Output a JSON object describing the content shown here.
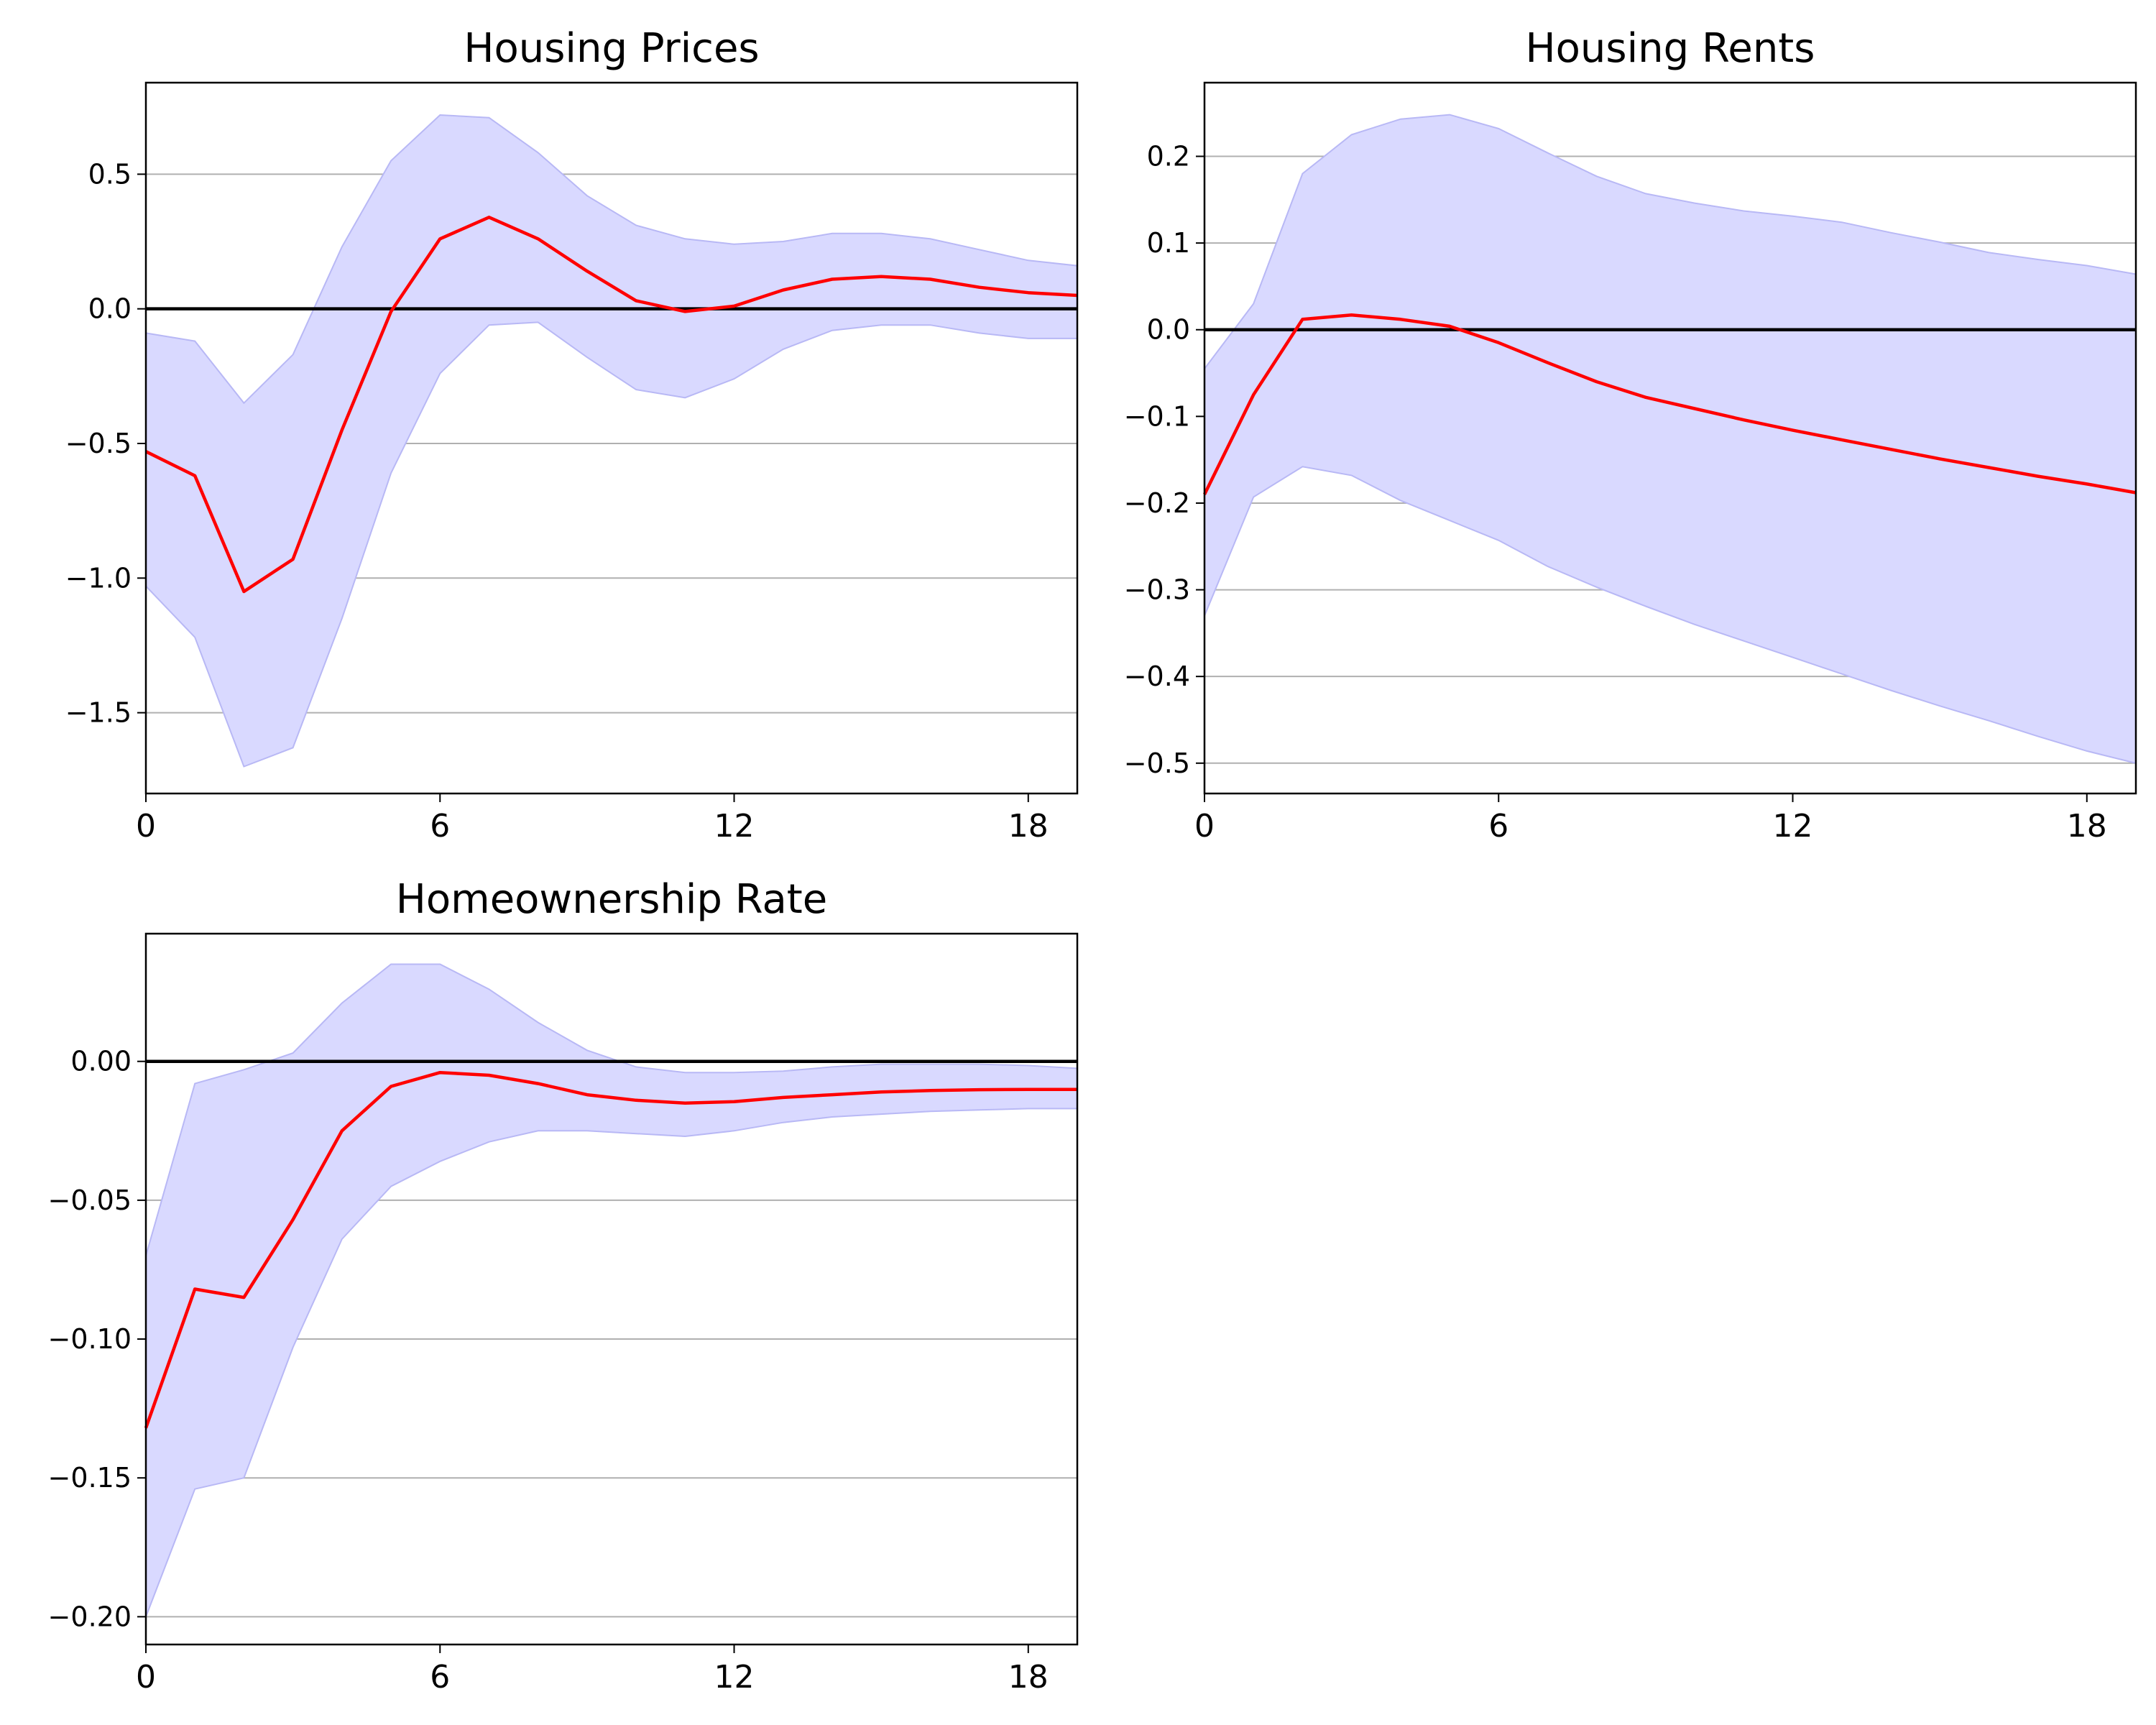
{
  "colors": {
    "line": "#ff0000",
    "band": "#d9d9ff",
    "band_edge": "#b8b8f5",
    "zero_line": "#000000",
    "grid": "#b0b0b0"
  },
  "chart_data": [
    {
      "type": "line",
      "title": "Housing Prices",
      "xlabel": "",
      "ylabel": "",
      "xlim": [
        0,
        19
      ],
      "ylim": [
        -1.8,
        0.84
      ],
      "xticks": [
        0,
        6,
        12,
        18
      ],
      "yticks": [
        0.5,
        0.0,
        -0.5,
        -1.0,
        -1.5
      ],
      "ytick_labels": [
        "0.5",
        "0.0",
        "−0.5",
        "−1.0",
        "−1.5"
      ],
      "grid": "horizontal",
      "zero_line": true,
      "x": [
        0,
        1,
        2,
        3,
        4,
        5,
        6,
        7,
        8,
        9,
        10,
        11,
        12,
        13,
        14,
        15,
        16,
        17,
        18,
        19
      ],
      "series": [
        {
          "name": "response",
          "values": [
            -0.53,
            -0.62,
            -1.05,
            -0.93,
            -0.45,
            -0.01,
            0.26,
            0.34,
            0.26,
            0.14,
            0.03,
            -0.01,
            0.01,
            0.07,
            0.11,
            0.12,
            0.11,
            0.08,
            0.06,
            0.05
          ]
        },
        {
          "name": "upper",
          "values": [
            -0.09,
            -0.12,
            -0.35,
            -0.17,
            0.23,
            0.55,
            0.72,
            0.71,
            0.58,
            0.42,
            0.31,
            0.26,
            0.24,
            0.25,
            0.28,
            0.28,
            0.26,
            0.22,
            0.18,
            0.16
          ]
        },
        {
          "name": "lower",
          "values": [
            -1.03,
            -1.22,
            -1.7,
            -1.63,
            -1.15,
            -0.61,
            -0.24,
            -0.06,
            -0.05,
            -0.18,
            -0.3,
            -0.33,
            -0.26,
            -0.15,
            -0.08,
            -0.06,
            -0.06,
            -0.09,
            -0.11,
            -0.11
          ]
        }
      ]
    },
    {
      "type": "line",
      "title": "Housing Rents",
      "xlabel": "",
      "ylabel": "",
      "xlim": [
        0,
        19
      ],
      "ylim": [
        -0.535,
        0.285
      ],
      "xticks": [
        0,
        6,
        12,
        18
      ],
      "yticks": [
        0.2,
        0.1,
        0.0,
        -0.1,
        -0.2,
        -0.3,
        -0.4,
        -0.5
      ],
      "ytick_labels": [
        "0.2",
        "0.1",
        "0.0",
        "−0.1",
        "−0.2",
        "−0.3",
        "−0.4",
        "−0.5"
      ],
      "grid": "horizontal",
      "zero_line": true,
      "x": [
        0,
        1,
        2,
        3,
        4,
        5,
        6,
        7,
        8,
        9,
        10,
        11,
        12,
        13,
        14,
        15,
        16,
        17,
        18,
        19
      ],
      "series": [
        {
          "name": "response",
          "values": [
            -0.19,
            -0.075,
            0.012,
            0.017,
            0.012,
            0.004,
            -0.015,
            -0.038,
            -0.06,
            -0.078,
            -0.091,
            -0.104,
            -0.116,
            -0.127,
            -0.138,
            -0.149,
            -0.159,
            -0.169,
            -0.178,
            -0.188
          ]
        },
        {
          "name": "upper",
          "values": [
            -0.045,
            0.03,
            0.18,
            0.225,
            0.243,
            0.248,
            0.232,
            0.204,
            0.177,
            0.157,
            0.146,
            0.137,
            0.131,
            0.124,
            0.112,
            0.101,
            0.089,
            0.081,
            0.074,
            0.064
          ]
        },
        {
          "name": "lower",
          "values": [
            -0.33,
            -0.193,
            -0.158,
            -0.168,
            -0.197,
            -0.22,
            -0.243,
            -0.273,
            -0.297,
            -0.319,
            -0.34,
            -0.359,
            -0.378,
            -0.397,
            -0.416,
            -0.434,
            -0.451,
            -0.469,
            -0.486,
            -0.5
          ]
        }
      ]
    },
    {
      "type": "line",
      "title": "Homeownership Rate",
      "xlabel": "",
      "ylabel": "",
      "xlim": [
        0,
        19
      ],
      "ylim": [
        -0.21,
        0.046
      ],
      "xticks": [
        0,
        6,
        12,
        18
      ],
      "yticks": [
        0.0,
        -0.05,
        -0.1,
        -0.15,
        -0.2
      ],
      "ytick_labels": [
        "0.00",
        "−0.05",
        "−0.10",
        "−0.15",
        "−0.20"
      ],
      "grid": "horizontal",
      "zero_line": true,
      "x": [
        0,
        1,
        2,
        3,
        4,
        5,
        6,
        7,
        8,
        9,
        10,
        11,
        12,
        13,
        14,
        15,
        16,
        17,
        18,
        19
      ],
      "series": [
        {
          "name": "response",
          "values": [
            -0.132,
            -0.082,
            -0.085,
            -0.057,
            -0.025,
            -0.009,
            -0.004,
            -0.005,
            -0.008,
            -0.012,
            -0.014,
            -0.015,
            -0.0145,
            -0.013,
            -0.012,
            -0.011,
            -0.0105,
            -0.0102,
            -0.0101,
            -0.0101
          ]
        },
        {
          "name": "upper",
          "values": [
            -0.07,
            -0.008,
            -0.003,
            0.003,
            0.021,
            0.035,
            0.035,
            0.026,
            0.014,
            0.004,
            -0.002,
            -0.004,
            -0.004,
            -0.0035,
            -0.002,
            -0.001,
            -0.001,
            -0.001,
            -0.0015,
            -0.0025
          ]
        },
        {
          "name": "lower",
          "values": [
            -0.2,
            -0.154,
            -0.15,
            -0.103,
            -0.064,
            -0.045,
            -0.036,
            -0.029,
            -0.025,
            -0.025,
            -0.026,
            -0.027,
            -0.025,
            -0.022,
            -0.02,
            -0.019,
            -0.018,
            -0.0175,
            -0.017,
            -0.017
          ]
        }
      ]
    }
  ]
}
